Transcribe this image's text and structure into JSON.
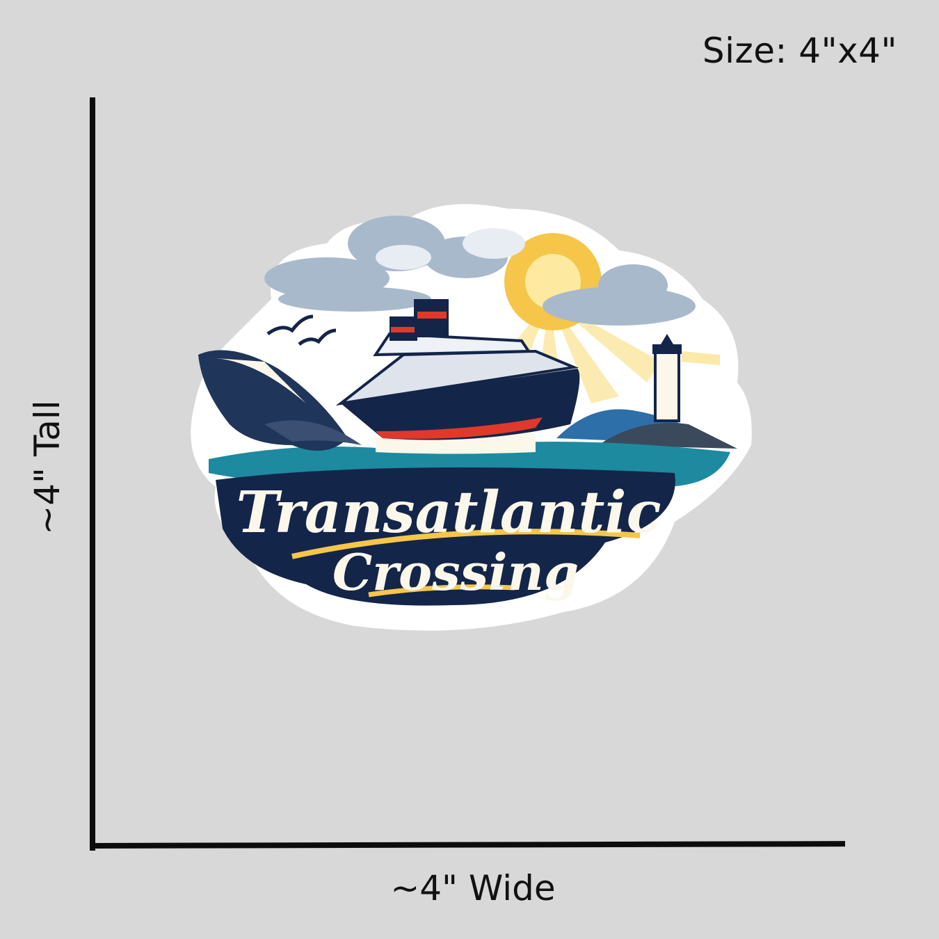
{
  "size_label": "Size: 4\"x4\"",
  "width_label": "~4\" Wide",
  "height_label": "~4\" Tall",
  "sticker": {
    "line1": "Transatlantic",
    "line2": "Crossing",
    "elements": [
      "clouds",
      "sun",
      "seagulls",
      "ocean-liner",
      "humpback-whale",
      "lighthouse",
      "waves"
    ],
    "colors": {
      "navy": "#14254a",
      "red": "#e0392b",
      "sun": "#f5c64a",
      "cloud": "#a9b9cc",
      "sea": "#1d8aa0",
      "cream": "#fbf7ea"
    }
  }
}
